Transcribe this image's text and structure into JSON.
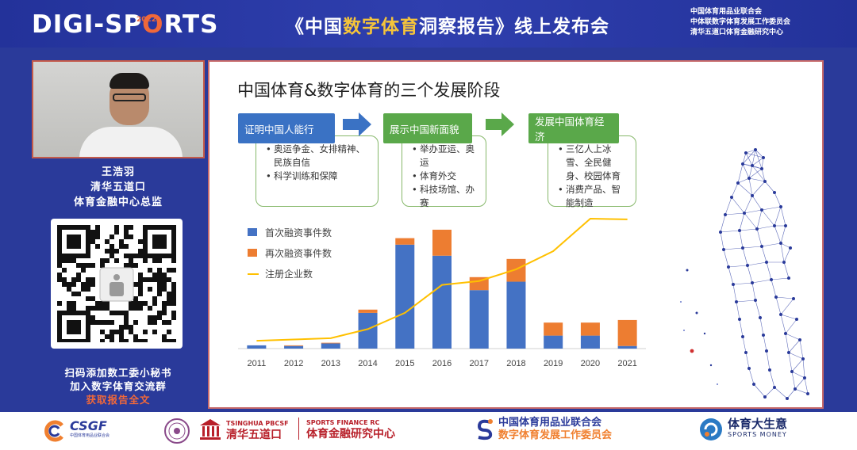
{
  "header": {
    "logo_part1": "DIGI-",
    "logo_part2": "SP",
    "logo_part3": "O",
    "logo_part4": "RTS",
    "logo_year": "2022",
    "title_pre": "《中国",
    "title_highlight": "数字体育",
    "title_post": "洞察报告》线上发布会",
    "organizers": [
      "中国体育用品业联合会",
      "中体联数字体育发展工作委员会",
      "清华五道口体育金融研究中心"
    ]
  },
  "speaker": {
    "name": "王浩羽",
    "org": "清华五道口",
    "role": "体育金融中心总监"
  },
  "qr": {
    "line1": "扫码添加数工委小秘书",
    "line2": "加入数字体育交流群",
    "line3": "获取报告全文"
  },
  "slide": {
    "title": "中国体育&数字体育的三个发展阶段",
    "stages": [
      {
        "header": "证明中国人能行",
        "items": [
          "奥运争金、女排精神、民族自信",
          "科学训练和保障"
        ],
        "color": "#3a72c4"
      },
      {
        "header": "展示中国新面貌",
        "items": [
          "举办亚运、奥运",
          "体育外交",
          "科技场馆、办赛"
        ],
        "color": "#5aa84a"
      },
      {
        "header": "发展中国体育经济",
        "items": [
          "三亿人上冰雪、全民健身、校园体育",
          "消费产品、智能制造"
        ],
        "color": "#5aa84a"
      }
    ],
    "arrow_colors": [
      "#3a72c4",
      "#5aa84a"
    ]
  },
  "chart_data": {
    "type": "bar",
    "categories": [
      "2011",
      "2012",
      "2013",
      "2014",
      "2015",
      "2016",
      "2017",
      "2018",
      "2019",
      "2020",
      "2021"
    ],
    "series": [
      {
        "name": "首次融资事件数",
        "kind": "bar-stack",
        "color": "#4472c4",
        "values": [
          5,
          4,
          8,
          55,
          160,
          143,
          90,
          103,
          20,
          20,
          4
        ]
      },
      {
        "name": "再次融资事件数",
        "kind": "bar-stack",
        "color": "#ed7d31",
        "values": [
          0,
          1,
          1,
          5,
          10,
          40,
          20,
          35,
          20,
          20,
          40
        ]
      },
      {
        "name": "注册企业数",
        "kind": "line",
        "color": "#ffc000",
        "values": [
          12,
          14,
          16,
          30,
          55,
          98,
          104,
          122,
          150,
          200,
          199
        ]
      }
    ],
    "ylim": [
      0,
      200
    ],
    "legend": "top-left",
    "grid": false
  },
  "footer": {
    "csgf": "CSGF",
    "csgf_sub": "中国体育用品业联合会",
    "tsinghua_en": "TSINGHUA PBCSF",
    "tsinghua_cn": "清华五道口",
    "sfrc_en": "SPORTS FINANCE RC",
    "sfrc_cn": "体育金融研究中心",
    "fed_line1": "中国体育用品业联合会",
    "fed_line2": "数字体育发展工作委员会",
    "money_cn": "体育大生意",
    "money_en": "SPORTS MONEY"
  }
}
